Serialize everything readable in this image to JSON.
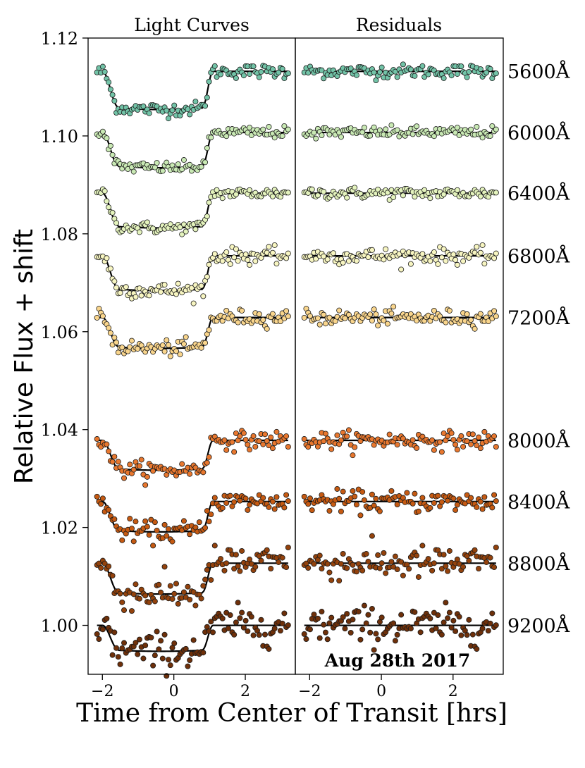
{
  "chart_data": {
    "type": "scatter",
    "panels": [
      {
        "title": "Light Curves"
      },
      {
        "title": "Residuals"
      }
    ],
    "xlabel": "Time from Center of Transit [hrs]",
    "ylabel": "Relative Flux + shift",
    "annotation": "Aug 28th 2017",
    "xlim": [
      -2.4,
      3.4
    ],
    "ylim": [
      0.99,
      1.12
    ],
    "xticks": [
      -2,
      0,
      2
    ],
    "xtick_labels": [
      "−2",
      "0",
      "2"
    ],
    "yticks": [
      1.0,
      1.02,
      1.04,
      1.06,
      1.08,
      1.1,
      1.12
    ],
    "ytick_labels": [
      "1.00",
      "1.02",
      "1.04",
      "1.06",
      "1.08",
      "1.10",
      "1.12"
    ],
    "transit": {
      "t1": -2.0,
      "t2": -1.55,
      "t3": 0.8,
      "t4": 1.1
    },
    "data_range": [
      -2.15,
      3.2
    ],
    "series": [
      {
        "name": "5600Å",
        "baseline": 1.1132,
        "depth": 0.0078,
        "scatter": 0.0007,
        "color": "#72c3a7"
      },
      {
        "name": "6000Å",
        "baseline": 1.1007,
        "depth": 0.0072,
        "scatter": 0.0006,
        "color": "#c9e9b4"
      },
      {
        "name": "6400Å",
        "baseline": 1.0883,
        "depth": 0.0071,
        "scatter": 0.0006,
        "color": "#e4f3bd"
      },
      {
        "name": "6800Å",
        "baseline": 1.0755,
        "depth": 0.0071,
        "scatter": 0.0008,
        "color": "#f7f5c1"
      },
      {
        "name": "7200Å",
        "baseline": 1.0629,
        "depth": 0.0063,
        "scatter": 0.0008,
        "color": "#f9d58c"
      },
      {
        "name": "8000Å",
        "baseline": 1.0378,
        "depth": 0.0061,
        "scatter": 0.0009,
        "color": "#e8772e"
      },
      {
        "name": "8400Å",
        "baseline": 1.0253,
        "depth": 0.0062,
        "scatter": 0.0011,
        "color": "#c65a12"
      },
      {
        "name": "8800Å",
        "baseline": 1.0127,
        "depth": 0.0063,
        "scatter": 0.0017,
        "color": "#93420c"
      },
      {
        "name": "9200Å",
        "baseline": 1.0,
        "depth": 0.0053,
        "scatter": 0.0019,
        "color": "#6e300a"
      }
    ]
  }
}
